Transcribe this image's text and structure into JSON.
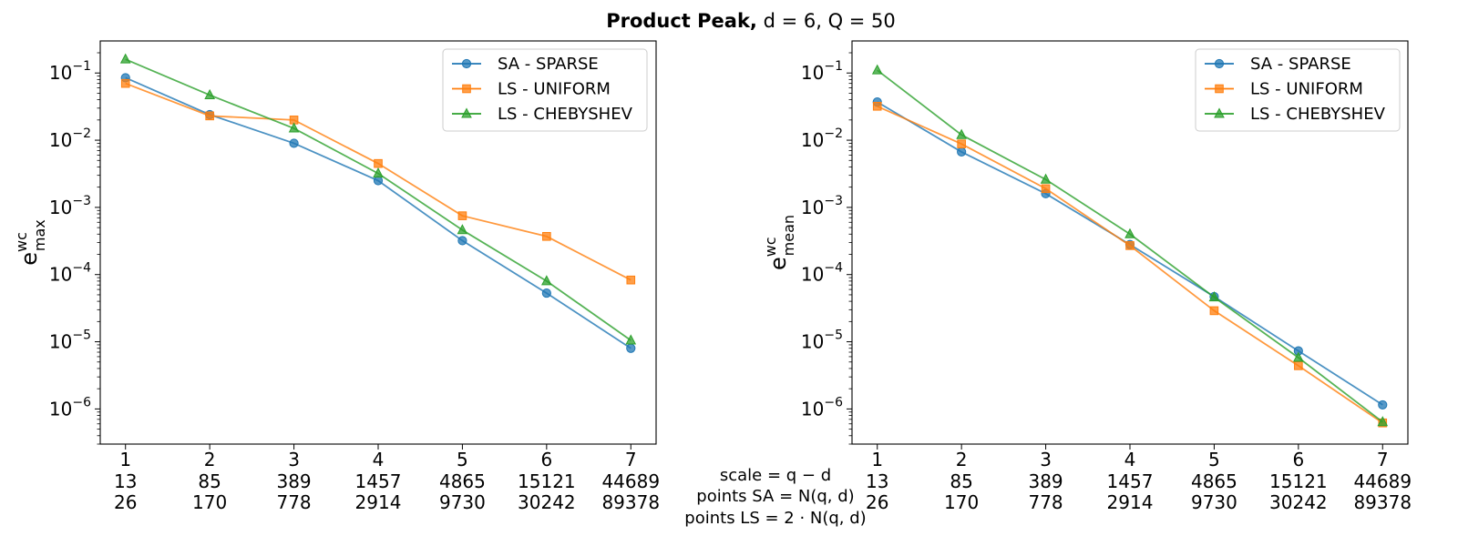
{
  "figure": {
    "title_bold": "Product Peak,",
    "title_rest": " d = 6, Q = 50",
    "bottom_labels": {
      "scale": "scale = q − d",
      "points_sa": "points SA = N(q, d)",
      "points_ls": "points LS = 2 · N(q, d)"
    }
  },
  "colors": {
    "sa": "#1f77b4",
    "ls_uniform": "#ff7f0e",
    "ls_chebyshev": "#2ca02c"
  },
  "chart_data": [
    {
      "type": "line",
      "ylabel_base": "e",
      "ylabel_sup": "wc",
      "ylabel_sub": "max",
      "yscale": "log",
      "ylim": [
        3e-07,
        0.3
      ],
      "x": [
        1,
        2,
        3,
        4,
        5,
        6,
        7
      ],
      "xlim": [
        0.7,
        7.3
      ],
      "x_tick_labels": [
        "1",
        "2",
        "3",
        "4",
        "5",
        "6",
        "7"
      ],
      "points_sa": [
        "13",
        "85",
        "389",
        "1457",
        "4865",
        "15121",
        "44689"
      ],
      "points_ls": [
        "26",
        "170",
        "778",
        "2914",
        "9730",
        "30242",
        "89378"
      ],
      "y_ticks": [
        {
          "base": "10",
          "exp": "−1",
          "v": 0.1
        },
        {
          "base": "10",
          "exp": "−2",
          "v": 0.01
        },
        {
          "base": "10",
          "exp": "−3",
          "v": 0.001
        },
        {
          "base": "10",
          "exp": "−4",
          "v": 0.0001
        },
        {
          "base": "10",
          "exp": "−5",
          "v": 1e-05
        },
        {
          "base": "10",
          "exp": "−6",
          "v": 1e-06
        }
      ],
      "legend_position": "top-right",
      "series": [
        {
          "name": "SA - SPARSE",
          "marker": "circle",
          "color": "#1f77b4",
          "values": [
            0.085,
            0.024,
            0.009,
            0.0025,
            0.00032,
            5.3e-05,
            8e-06
          ]
        },
        {
          "name": "LS - UNIFORM",
          "marker": "square",
          "color": "#ff7f0e",
          "values": [
            0.07,
            0.023,
            0.02,
            0.0045,
            0.00075,
            0.00037,
            8.3e-05
          ]
        },
        {
          "name": "LS - CHEBYSHEV",
          "marker": "triangle",
          "color": "#2ca02c",
          "values": [
            0.16,
            0.047,
            0.015,
            0.0032,
            0.00046,
            8e-05,
            1.05e-05
          ]
        }
      ]
    },
    {
      "type": "line",
      "ylabel_base": "e",
      "ylabel_sup": "wc",
      "ylabel_sub": "mean",
      "yscale": "log",
      "ylim": [
        3e-07,
        0.3
      ],
      "x": [
        1,
        2,
        3,
        4,
        5,
        6,
        7
      ],
      "xlim": [
        0.7,
        7.3
      ],
      "x_tick_labels": [
        "1",
        "2",
        "3",
        "4",
        "5",
        "6",
        "7"
      ],
      "points_sa": [
        "13",
        "85",
        "389",
        "1457",
        "4865",
        "15121",
        "44689"
      ],
      "points_ls": [
        "26",
        "170",
        "778",
        "2914",
        "9730",
        "30242",
        "89378"
      ],
      "y_ticks": [
        {
          "base": "10",
          "exp": "−1",
          "v": 0.1
        },
        {
          "base": "10",
          "exp": "−2",
          "v": 0.01
        },
        {
          "base": "10",
          "exp": "−3",
          "v": 0.001
        },
        {
          "base": "10",
          "exp": "−4",
          "v": 0.0001
        },
        {
          "base": "10",
          "exp": "−5",
          "v": 1e-05
        },
        {
          "base": "10",
          "exp": "−6",
          "v": 1e-06
        }
      ],
      "legend_position": "top-right",
      "series": [
        {
          "name": "SA - SPARSE",
          "marker": "circle",
          "color": "#1f77b4",
          "values": [
            0.037,
            0.0067,
            0.0016,
            0.00028,
            4.7e-05,
            7.3e-06,
            1.15e-06
          ]
        },
        {
          "name": "LS - UNIFORM",
          "marker": "square",
          "color": "#ff7f0e",
          "values": [
            0.032,
            0.0088,
            0.0019,
            0.00027,
            2.9e-05,
            4.4e-06,
            6.2e-07
          ]
        },
        {
          "name": "LS - CHEBYSHEV",
          "marker": "triangle",
          "color": "#2ca02c",
          "values": [
            0.11,
            0.012,
            0.0026,
            0.0004,
            4.6e-05,
            5.8e-06,
            6.4e-07
          ]
        }
      ]
    }
  ]
}
